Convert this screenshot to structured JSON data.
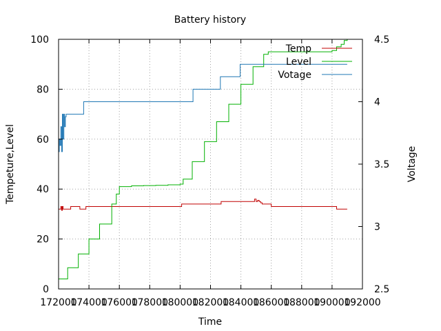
{
  "chart_data": {
    "type": "line",
    "title": "Battery history",
    "xlabel": "Time",
    "ylabel": "Tempeture,Level",
    "y2label": "Voltage",
    "xlim": [
      172000,
      192000
    ],
    "ylim": [
      0,
      100
    ],
    "y2lim": [
      2.5,
      4.5
    ],
    "xticks": [
      "172000",
      "174000",
      "176000",
      "178000",
      "180000",
      "182000",
      "184000",
      "186000",
      "188000",
      "190000",
      "192000"
    ],
    "xtick_values": [
      172000,
      174000,
      176000,
      178000,
      180000,
      182000,
      184000,
      186000,
      188000,
      190000,
      192000
    ],
    "yticks": [
      "0",
      "20",
      "40",
      "60",
      "80",
      "100"
    ],
    "ytick_values": [
      0,
      20,
      40,
      60,
      80,
      100
    ],
    "y2ticks": [
      "2.5",
      "3",
      "3.5",
      "4",
      "4.5"
    ],
    "y2tick_values": [
      2.5,
      3,
      3.5,
      4,
      4.5
    ],
    "grid": true,
    "legend_position": "top-right",
    "series": [
      {
        "name": "Temp",
        "axis": "y",
        "color": "#c00000",
        "step": true,
        "x": [
          172000,
          172150,
          172200,
          172250,
          172300,
          172800,
          173300,
          173400,
          173800,
          180000,
          180100,
          182600,
          182700,
          184800,
          184900,
          185000,
          185100,
          185200,
          185300,
          185400,
          185800,
          186000,
          190200,
          190300,
          191000
        ],
        "y": [
          32,
          33,
          31.5,
          33,
          32,
          33,
          33,
          32,
          33,
          33,
          34,
          34,
          35,
          35,
          36,
          35,
          35.5,
          35,
          34.5,
          34,
          34,
          33,
          33,
          32,
          32
        ]
      },
      {
        "name": "Level",
        "axis": "y",
        "color": "#00b000",
        "step": true,
        "x": [
          172000,
          172600,
          173300,
          174000,
          174700,
          175500,
          175800,
          176000,
          176800,
          177600,
          178400,
          179200,
          180000,
          180200,
          180800,
          181600,
          182400,
          183200,
          184000,
          184800,
          185500,
          185800,
          186400,
          187200,
          188000,
          188800,
          189600,
          190000,
          190300,
          190600,
          190800,
          191000
        ],
        "y": [
          4,
          8.5,
          14,
          20,
          26,
          34,
          38,
          41,
          41.3,
          41.4,
          41.5,
          41.7,
          42,
          44,
          51,
          59,
          67,
          74,
          82,
          89,
          94,
          95,
          95,
          95,
          95,
          95,
          95,
          95.5,
          97,
          98,
          99.5,
          100
        ]
      },
      {
        "name": "Votage",
        "axis": "y2",
        "color": "#1f77b4",
        "step": true,
        "x": [
          172000,
          172050,
          172100,
          172150,
          172200,
          172250,
          172300,
          172350,
          172400,
          172450,
          172500,
          172550,
          173600,
          173650,
          180800,
          180850,
          182600,
          182650,
          183900,
          183950,
          191000
        ],
        "y": [
          3.6,
          3.7,
          3.65,
          3.8,
          3.6,
          3.9,
          3.7,
          3.9,
          3.8,
          3.88,
          3.9,
          3.9,
          3.9,
          4.0,
          4.0,
          4.1,
          4.1,
          4.2,
          4.2,
          4.3,
          4.3
        ]
      }
    ]
  }
}
